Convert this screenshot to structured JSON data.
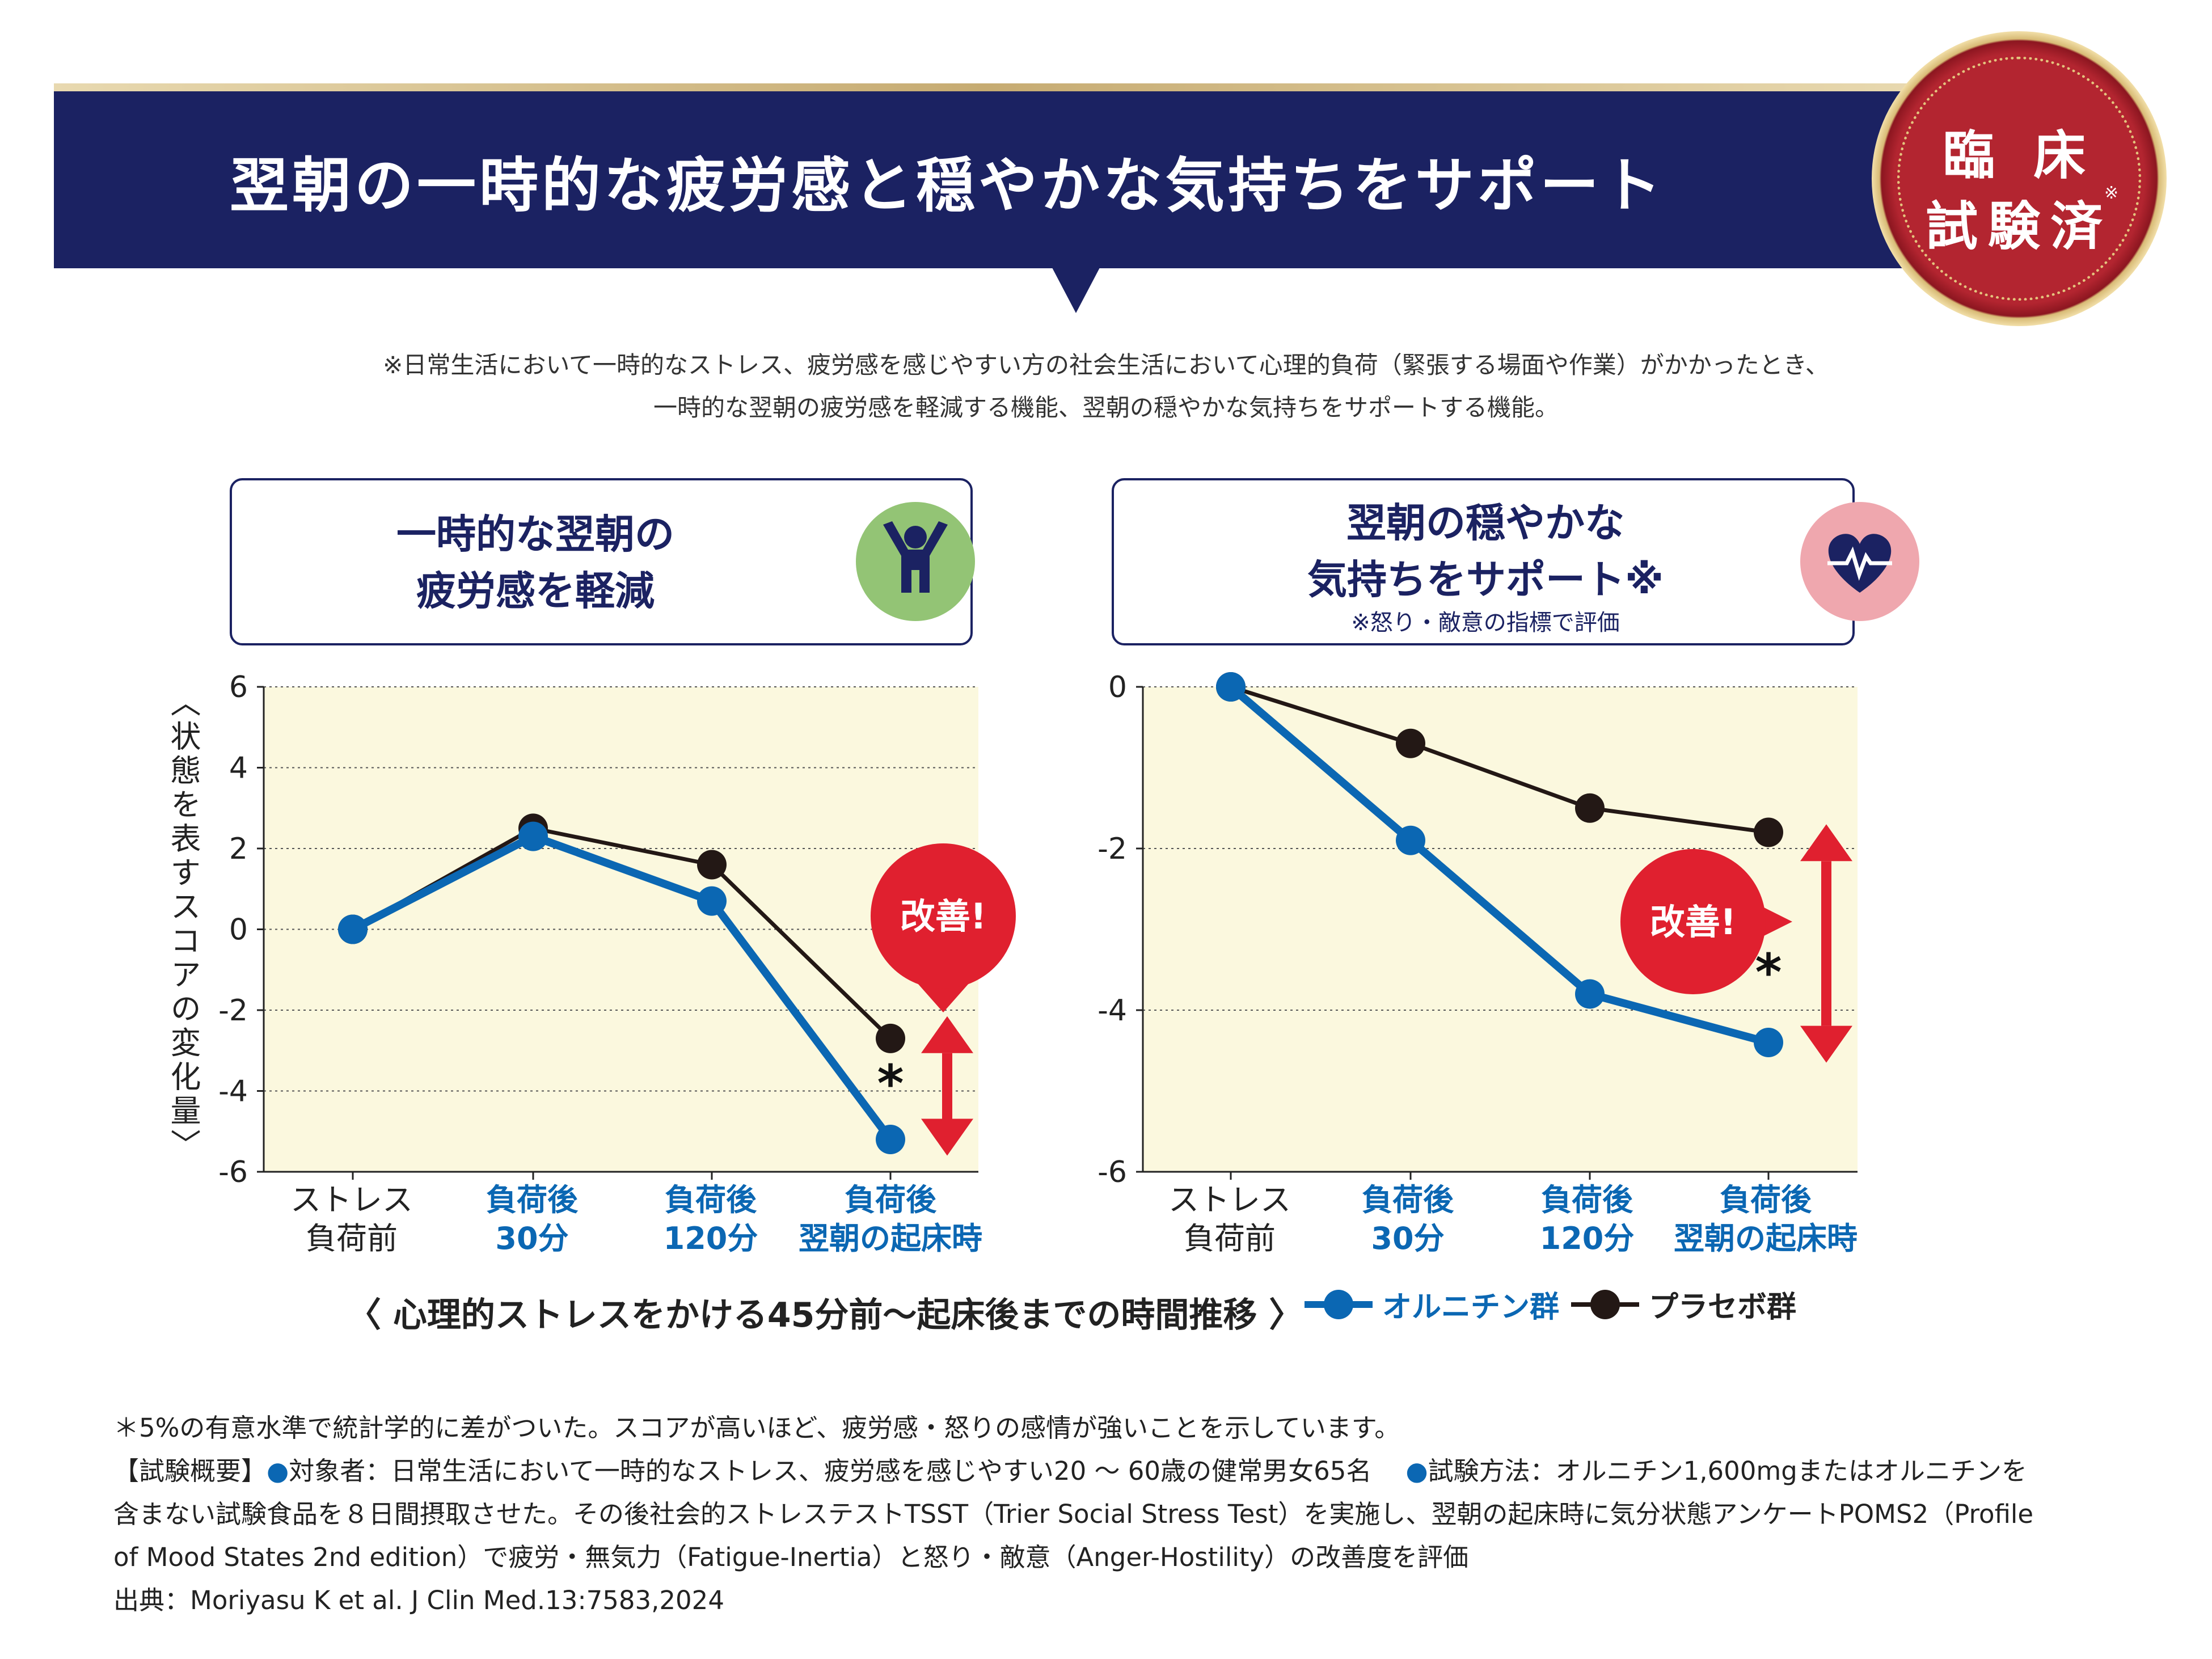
{
  "header": {
    "title": "翌朝の一時的な疲労感と穏やかな気持ちをサポート",
    "seal_line1": "臨 床",
    "seal_line2": "試験済",
    "seal_note": "※"
  },
  "disclaimer": {
    "line1": "※日常生活において一時的なストレス、疲労感を感じやすい方の社会生活において心理的負荷（緊張する場面や作業）がかかったとき、",
    "line2": "一時的な翌朝の疲労感を軽減する機能、翌朝の穏やかな気持ちをサポートする機能。"
  },
  "panels": {
    "left": {
      "title_line1": "一時的な翌朝の",
      "title_line2": "疲労感を軽減",
      "icon": "person-raising-arms-icon"
    },
    "right": {
      "title_line1": "翌朝の穏やかな",
      "title_line2": "気持ちをサポート※",
      "subtitle": "※怒り・敵意の指標で評価",
      "icon": "heart-pulse-icon"
    }
  },
  "y_axis_label": "〈状態を表すスコアの変化量〉",
  "x_categories": [
    {
      "line1": "ストレス",
      "line2": "負荷前"
    },
    {
      "line1": "負荷後",
      "line2": "30分"
    },
    {
      "line1": "負荷後",
      "line2": "120分"
    },
    {
      "line1": "負荷後",
      "line2": "翌朝の起床時"
    }
  ],
  "chart_data": [
    {
      "type": "line",
      "title": "一時的な翌朝の疲労感を軽減",
      "ylabel": "〈状態を表すスコアの変化量〉",
      "categories": [
        "ストレス負荷前",
        "負荷後30分",
        "負荷後120分",
        "負荷後翌朝の起床時"
      ],
      "ylim": [
        -6,
        6
      ],
      "yticks": [
        6,
        4,
        2,
        0,
        -2,
        -4,
        -6
      ],
      "series": [
        {
          "name": "オルニチン群",
          "color": "#0b67b3",
          "values": [
            0,
            2.3,
            0.7,
            -5.2
          ]
        },
        {
          "name": "プラセボ群",
          "color": "#231815",
          "values": [
            0,
            2.5,
            1.6,
            -2.7
          ]
        }
      ],
      "annotation": "改善!",
      "significance_mark": "*"
    },
    {
      "type": "line",
      "title": "翌朝の穏やかな気持ちをサポート",
      "categories": [
        "ストレス負荷前",
        "負荷後30分",
        "負荷後120分",
        "負荷後翌朝の起床時"
      ],
      "ylim": [
        -6,
        0
      ],
      "yticks": [
        0,
        -2,
        -4,
        -6
      ],
      "series": [
        {
          "name": "オルニチン群",
          "color": "#0b67b3",
          "values": [
            0,
            -1.9,
            -3.8,
            -4.4
          ]
        },
        {
          "name": "プラセボ群",
          "color": "#231815",
          "values": [
            0,
            -0.7,
            -1.5,
            -1.8
          ]
        }
      ],
      "annotation": "改善!",
      "significance_mark": "*"
    }
  ],
  "legend": {
    "caption": "〈 心理的ストレスをかける45分前～起床後までの時間推移 〉",
    "ornithine": "オルニチン群",
    "placebo": "プラセボ群"
  },
  "footer": {
    "line1": "＊5%の有意水準で統計学的に差がついた。スコアが高いほど、疲労感・怒りの感情が強いことを示しています。",
    "line2a": "【試験概要】",
    "bullet": "●",
    "line2b": "対象者：日常生活において一時的なストレス、疲労感を感じやすい20 ～ 60歳の健常男女65名",
    "line2c": "試験方法：オルニチン1,600mgまたはオルニチンを",
    "line3": "含まない試験食品を８日間摂取させた。その後社会的ストレステストTSST（Trier Social Stress Test）を実施し、翌朝の起床時に気分状態アンケートPOMS2（Profile",
    "line4": "of Mood States 2nd edition）で疲労・無気力（Fatigue-Inertia）と怒り・敵意（Anger-Hostility）の改善度を評価",
    "line5": "出典：Moriyasu K et al. J Clin Med.13:7583,2024"
  },
  "colors": {
    "navy": "#1b2262",
    "blue": "#0b67b3",
    "black": "#231815",
    "red": "#e0202f",
    "plot_bg": "#fbf8de"
  }
}
